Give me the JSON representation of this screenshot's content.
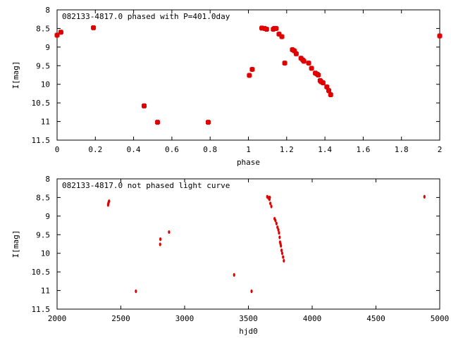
{
  "chart_data": [
    {
      "type": "scatter",
      "title": "082133-4817.0 phased with P=401.0day",
      "xlabel": "phase",
      "ylabel": "I[mag]",
      "xlim": [
        0,
        2
      ],
      "ylim": [
        11.5,
        8
      ],
      "y_inverted": true,
      "xticks": [
        "0",
        "0.2",
        "0.4",
        "0.6",
        "0.8",
        "1",
        "1.2",
        "1.4",
        "1.6",
        "1.8",
        "2"
      ],
      "yticks": [
        "8",
        "8.5",
        "9",
        "9.5",
        "10",
        "10.5",
        "11",
        "11.5"
      ],
      "marker_color": "#e00000",
      "grid": false,
      "series": [
        {
          "x": [
            0.0,
            0.02,
            0.19,
            0.455,
            0.525,
            0.79,
            1.005,
            1.02,
            1.07,
            1.085,
            1.095,
            1.13,
            1.135,
            1.145,
            1.16,
            1.175,
            1.19,
            1.23,
            1.24,
            1.25,
            1.275,
            1.285,
            1.29,
            1.315,
            1.33,
            1.35,
            1.36,
            1.365,
            1.375,
            1.38,
            1.39,
            1.41,
            1.42,
            1.43,
            2.0
          ],
          "y": [
            8.68,
            8.6,
            8.48,
            10.58,
            11.02,
            11.02,
            9.76,
            9.6,
            8.49,
            8.5,
            8.52,
            8.52,
            8.5,
            8.5,
            8.65,
            8.72,
            9.43,
            9.07,
            9.1,
            9.18,
            9.3,
            9.35,
            9.38,
            9.43,
            9.57,
            9.7,
            9.73,
            9.75,
            9.9,
            9.93,
            9.96,
            10.07,
            10.17,
            10.28,
            8.7
          ]
        }
      ]
    },
    {
      "type": "scatter",
      "title": "082133-4817.0 not phased light curve",
      "xlabel": "hjd0",
      "ylabel": "I[mag]",
      "xlim": [
        2000,
        5000
      ],
      "ylim": [
        11.5,
        8
      ],
      "y_inverted": true,
      "xticks": [
        "2000",
        "2500",
        "3000",
        "3500",
        "4000",
        "4500",
        "5000"
      ],
      "yticks": [
        "8",
        "8.5",
        "9",
        "9.5",
        "10",
        "10.5",
        "11",
        "11.5"
      ],
      "marker_color": "#e00000",
      "grid": false,
      "series": [
        {
          "x": [
            2400,
            2402,
            2405,
            2408,
            2618,
            2808,
            2810,
            2878,
            3388,
            3525,
            3648,
            3655,
            3660,
            3665,
            3668,
            3672,
            3680,
            3705,
            3712,
            3720,
            3728,
            3735,
            3740,
            3745,
            3748,
            3752,
            3755,
            3760,
            3765,
            3772,
            3778,
            4880
          ],
          "y": [
            8.7,
            8.66,
            8.62,
            8.6,
            11.02,
            9.76,
            9.62,
            9.43,
            10.58,
            11.02,
            8.48,
            8.5,
            8.52,
            8.55,
            8.5,
            8.66,
            8.74,
            9.07,
            9.12,
            9.2,
            9.3,
            9.37,
            9.45,
            9.57,
            9.7,
            9.75,
            9.8,
            9.92,
            10.0,
            10.1,
            10.2,
            8.48
          ]
        }
      ]
    }
  ]
}
